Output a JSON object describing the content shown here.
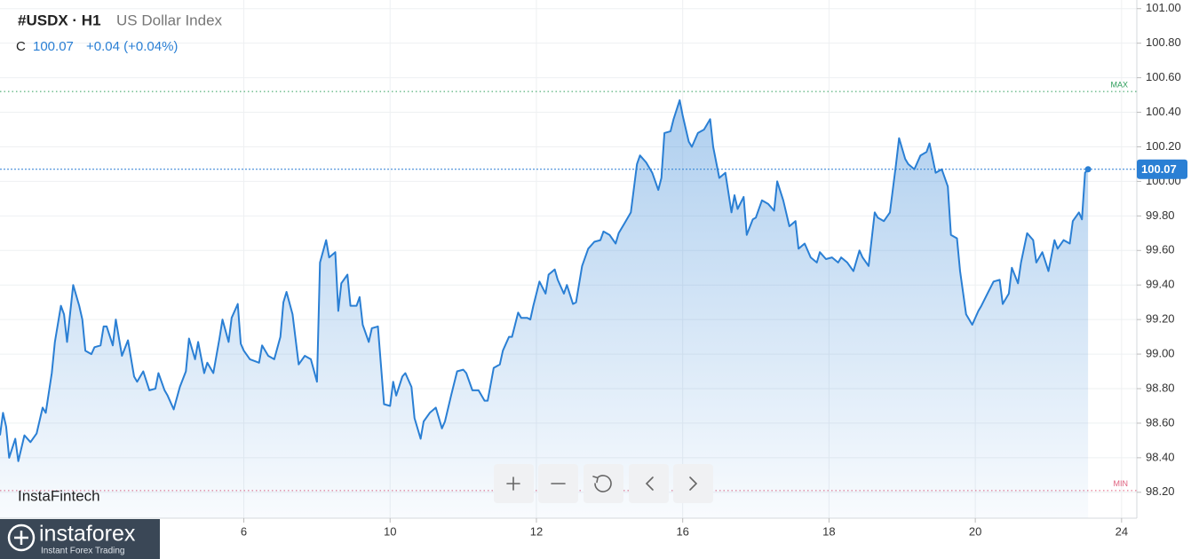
{
  "chart_data": {
    "type": "line",
    "title": "#USDX · H1",
    "subtitle": "US Dollar Index",
    "close_prefix": "C",
    "change": "+0.04 (+0.04%)",
    "watermark": "InstaFintech",
    "color": "#2a7fd4",
    "grid": true,
    "xlim": [
      0,
      373
    ],
    "xticks": [
      {
        "value": 80,
        "label": "6"
      },
      {
        "value": 128,
        "label": "10"
      },
      {
        "value": 176,
        "label": "12"
      },
      {
        "value": 224,
        "label": "16"
      },
      {
        "value": 272,
        "label": "18"
      },
      {
        "value": 320,
        "label": "20"
      },
      {
        "value": 368,
        "label": "24"
      }
    ],
    "ylim": [
      98.05,
      101.05
    ],
    "yticks": [
      {
        "value": 98.2,
        "label": "98.20"
      },
      {
        "value": 98.4,
        "label": "98.40"
      },
      {
        "value": 98.6,
        "label": "98.60"
      },
      {
        "value": 98.8,
        "label": "98.80"
      },
      {
        "value": 99,
        "label": "99.00"
      },
      {
        "value": 99.2,
        "label": "99.20"
      },
      {
        "value": 99.4,
        "label": "99.40"
      },
      {
        "value": 99.6,
        "label": "99.60"
      },
      {
        "value": 99.8,
        "label": "99.80"
      },
      {
        "value": 100,
        "label": "100.00"
      },
      {
        "value": 100.2,
        "label": "100.20"
      },
      {
        "value": 100.4,
        "label": "100.40"
      },
      {
        "value": 100.6,
        "label": "100.60"
      },
      {
        "value": 100.8,
        "label": "100.80"
      },
      {
        "value": 101,
        "label": "101.00"
      }
    ],
    "max_line": {
      "label": "MAX",
      "value": 100.52,
      "color": "#2e9e5b"
    },
    "min_line": {
      "label": "MIN",
      "value": 98.21,
      "color": "#e0607e"
    },
    "x": [
      0,
      1,
      2,
      3,
      5,
      6,
      8,
      10,
      12,
      14,
      15,
      17,
      18,
      20,
      21,
      22,
      24,
      26,
      27,
      28,
      30,
      31,
      33,
      34,
      35,
      37,
      38,
      40,
      42,
      44,
      45,
      47,
      49,
      51,
      52,
      54,
      55,
      57,
      59,
      61,
      62,
      64,
      65,
      67,
      68,
      70,
      72,
      73,
      75,
      76,
      78,
      79,
      80,
      82,
      85,
      86,
      88,
      90,
      92,
      93,
      94,
      96,
      98,
      100,
      102,
      104,
      105,
      107,
      108,
      110,
      111,
      112,
      114,
      115,
      117,
      118,
      119,
      121,
      122,
      124,
      126,
      128,
      129,
      130,
      132,
      133,
      135,
      136,
      138,
      139,
      141,
      143,
      145,
      146,
      148,
      150,
      152,
      153,
      155,
      157,
      159,
      160,
      162,
      164,
      165,
      167,
      168,
      170,
      171,
      173,
      174,
      175,
      177,
      179,
      180,
      182,
      183,
      185,
      186,
      188,
      189,
      191,
      193,
      195,
      197,
      198,
      200,
      202,
      203,
      205,
      207,
      209,
      210,
      212,
      214,
      216,
      217,
      218,
      220,
      221,
      223,
      224,
      226,
      227,
      229,
      231,
      233,
      234,
      236,
      238,
      240,
      241,
      242,
      244,
      245,
      247,
      248,
      250,
      252,
      254,
      255,
      257,
      259,
      261,
      262,
      264,
      266,
      268,
      269,
      271,
      273,
      275,
      276,
      278,
      280,
      282,
      283,
      285,
      287,
      288,
      290,
      292,
      294,
      295,
      297,
      298,
      300,
      302,
      304,
      305,
      307,
      309,
      311,
      312,
      314,
      315,
      317,
      319,
      321,
      322,
      324,
      326,
      328,
      329,
      331,
      332,
      334,
      335,
      337,
      339,
      340,
      342,
      344,
      346,
      347,
      349,
      351,
      352,
      354,
      355,
      356,
      357
    ],
    "values": [
      98.53,
      98.66,
      98.58,
      98.4,
      98.51,
      98.38,
      98.53,
      98.49,
      98.54,
      98.69,
      98.66,
      98.89,
      99.07,
      99.28,
      99.23,
      99.07,
      99.4,
      99.28,
      99.2,
      99.02,
      99.0,
      99.04,
      99.05,
      99.16,
      99.16,
      99.05,
      99.2,
      98.99,
      99.08,
      98.87,
      98.84,
      98.9,
      98.79,
      98.8,
      98.89,
      98.79,
      98.76,
      98.68,
      98.81,
      98.9,
      99.09,
      98.97,
      99.07,
      98.89,
      98.95,
      98.89,
      99.09,
      99.2,
      99.07,
      99.21,
      99.29,
      99.06,
      99.02,
      98.97,
      98.95,
      99.05,
      98.99,
      98.97,
      99.1,
      99.3,
      99.36,
      99.23,
      98.94,
      98.99,
      98.97,
      98.84,
      99.53,
      99.66,
      99.56,
      99.59,
      99.25,
      99.41,
      99.46,
      99.28,
      99.28,
      99.33,
      99.17,
      99.07,
      99.15,
      99.16,
      98.71,
      98.7,
      98.84,
      98.76,
      98.87,
      98.89,
      98.81,
      98.63,
      98.51,
      98.61,
      98.66,
      98.69,
      98.57,
      98.61,
      98.76,
      98.9,
      98.91,
      98.89,
      98.79,
      98.79,
      98.73,
      98.73,
      98.92,
      98.94,
      99.02,
      99.1,
      99.1,
      99.24,
      99.21,
      99.21,
      99.2,
      99.28,
      99.42,
      99.35,
      99.46,
      99.49,
      99.43,
      99.35,
      99.4,
      99.29,
      99.3,
      99.51,
      99.61,
      99.65,
      99.66,
      99.71,
      99.69,
      99.64,
      99.7,
      99.76,
      99.82,
      100.1,
      100.15,
      100.11,
      100.05,
      99.95,
      100.02,
      100.28,
      100.29,
      100.36,
      100.47,
      100.38,
      100.23,
      100.2,
      100.28,
      100.3,
      100.36,
      100.2,
      100.02,
      100.05,
      99.82,
      99.92,
      99.84,
      99.91,
      99.69,
      99.78,
      99.79,
      99.89,
      99.87,
      99.83,
      100.0,
      99.89,
      99.74,
      99.77,
      99.61,
      99.64,
      99.56,
      99.53,
      99.59,
      99.55,
      99.56,
      99.53,
      99.56,
      99.53,
      99.48,
      99.6,
      99.56,
      99.51,
      99.82,
      99.79,
      99.77,
      99.82,
      100.1,
      100.25,
      100.13,
      100.1,
      100.07,
      100.15,
      100.17,
      100.22,
      100.05,
      100.07,
      99.97,
      99.69,
      99.67,
      99.48,
      99.23,
      99.17,
      99.25,
      99.28,
      99.35,
      99.42,
      99.43,
      99.29,
      99.35,
      99.5,
      99.41,
      99.53,
      99.7,
      99.66,
      99.53,
      99.59,
      99.48,
      99.66,
      99.61,
      99.66,
      99.64,
      99.77,
      99.82,
      99.78,
      100.05,
      100.07
    ]
  },
  "branding": {
    "name": "instaforex",
    "tagline": "Instant Forex Trading"
  }
}
